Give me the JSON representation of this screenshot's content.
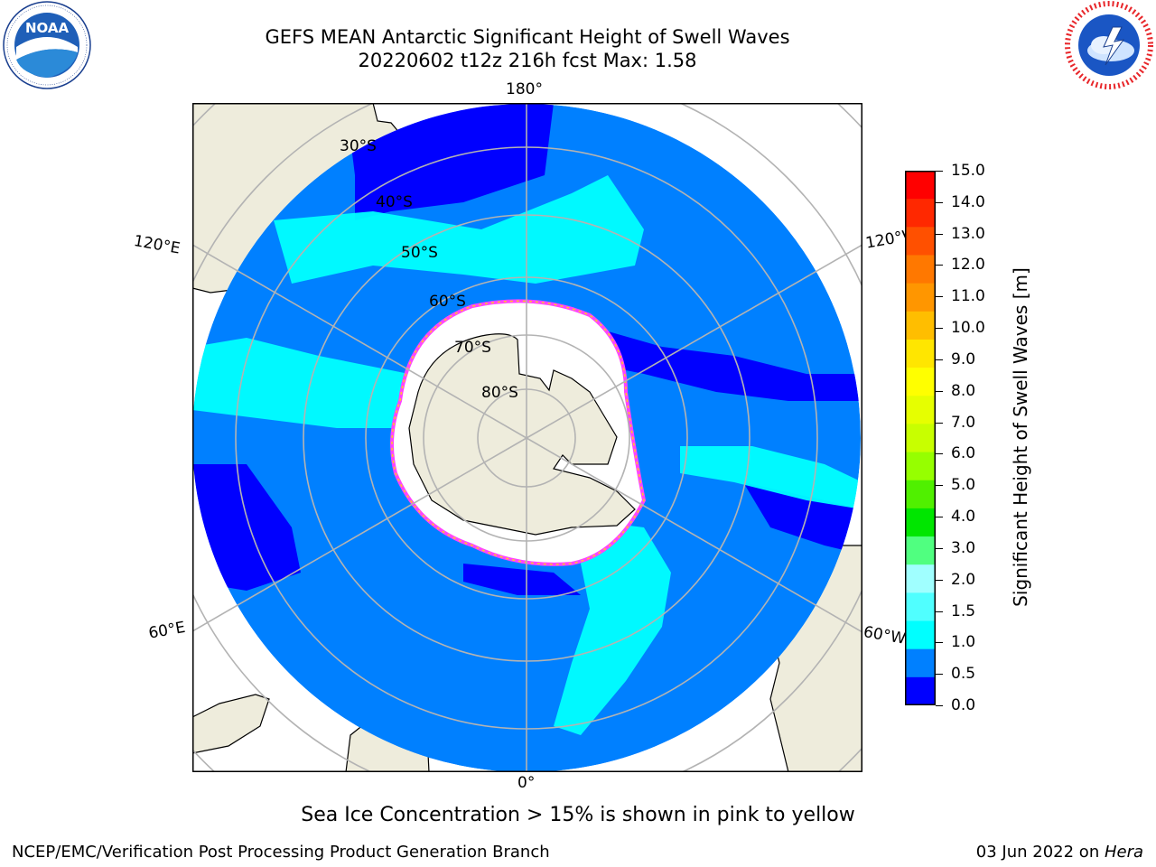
{
  "title": {
    "line1": "GEFS MEAN Antarctic Significant Height of Swell Waves",
    "line2": "20220602 t12z 216h fcst   Max: 1.58"
  },
  "logos": {
    "left": {
      "icon": "noaa-logo",
      "text": "NOAA",
      "ring_text": "NATIONAL OCEANIC AND ATMOSPHERIC ADMINISTRATION · U.S. DEPARTMENT OF COMMERCE"
    },
    "right": {
      "icon": "national-weather-service-logo",
      "ring_text": "NATIONAL WEATHER SERVICE"
    }
  },
  "map": {
    "projection": "south-polar-stereographic",
    "longitude_labels": {
      "top": "180°",
      "bottom": "0°",
      "left_upper": "120°E",
      "left_lower": "60°E",
      "right_upper": "120°W",
      "right_lower": "60°W"
    },
    "latitude_labels": [
      "30°S",
      "40°S",
      "50°S",
      "60°S",
      "70°S",
      "80°S"
    ],
    "colors": {
      "ocean_low": "#0000ff",
      "ocean_mid": "#0080ff",
      "ocean_swell": "#00ffff",
      "land": "#eeecdc",
      "ice": "#ffffff",
      "ice_edge_pink": "#ff44ff",
      "ice_edge_yellow": "#ffcc22",
      "grid": "#b3b3b3"
    }
  },
  "colorbar": {
    "title": "Significant Height of Swell Waves [m]",
    "ticks": [
      "15.0",
      "14.0",
      "13.0",
      "12.0",
      "11.0",
      "10.0",
      "9.0",
      "8.0",
      "7.0",
      "6.0",
      "5.0",
      "4.0",
      "3.0",
      "2.0",
      "1.5",
      "1.0",
      "0.5",
      "0.0"
    ],
    "colors_top_to_bottom": [
      "#ff0000",
      "#ff2800",
      "#ff5000",
      "#ff7800",
      "#ff9600",
      "#ffbe00",
      "#ffe600",
      "#ffff00",
      "#e6ff00",
      "#c8ff00",
      "#96ff00",
      "#50f000",
      "#00e600",
      "#50ff80",
      "#a0ffff",
      "#50ffff",
      "#00ffff",
      "#0080ff",
      "#0000ff"
    ]
  },
  "caption": "Sea Ice Concentration > 15% is shown in pink to yellow",
  "footer": {
    "left": "NCEP/EMC/Verification Post Processing Product Generation Branch",
    "right_date": "03 Jun 2022 on ",
    "right_machine": "Hera"
  }
}
